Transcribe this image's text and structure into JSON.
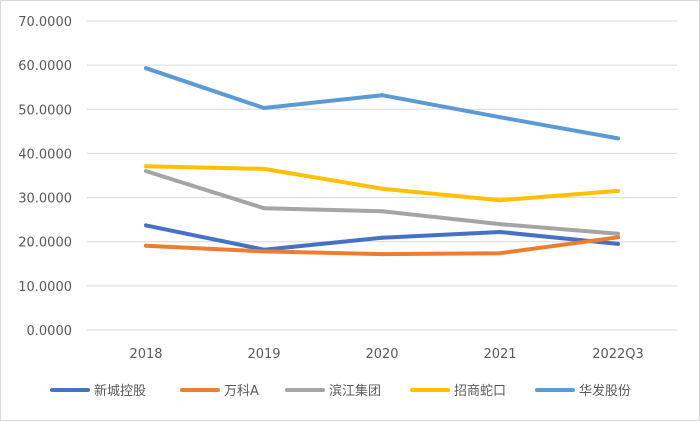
{
  "chart_data": {
    "type": "line",
    "title": "",
    "xlabel": "",
    "ylabel": "",
    "categories": [
      "2018",
      "2019",
      "2020",
      "2021",
      "2022Q3"
    ],
    "ylim": [
      0,
      70
    ],
    "yticks": [
      0,
      10,
      20,
      30,
      40,
      50,
      60,
      70
    ],
    "ytick_labels": [
      "0.0000",
      "10.0000",
      "20.0000",
      "30.0000",
      "40.0000",
      "50.0000",
      "60.0000",
      "70.0000"
    ],
    "grid": true,
    "legend_position": "bottom",
    "series": [
      {
        "name": "新城控股",
        "color": "#4472c4",
        "values": [
          23.7,
          18.2,
          20.9,
          22.2,
          19.5
        ]
      },
      {
        "name": "万科A",
        "color": "#ed7d31",
        "values": [
          19.1,
          17.8,
          17.2,
          17.4,
          21.0
        ]
      },
      {
        "name": "滨江集团",
        "color": "#a5a5a5",
        "values": [
          36.0,
          27.6,
          26.9,
          24.0,
          21.8
        ]
      },
      {
        "name": "招商蛇口",
        "color": "#ffc000",
        "values": [
          37.1,
          36.5,
          32.0,
          29.4,
          31.5
        ]
      },
      {
        "name": "华发股份",
        "color": "#5b9bd5",
        "values": [
          59.3,
          50.3,
          53.2,
          48.2,
          43.4
        ]
      }
    ]
  }
}
